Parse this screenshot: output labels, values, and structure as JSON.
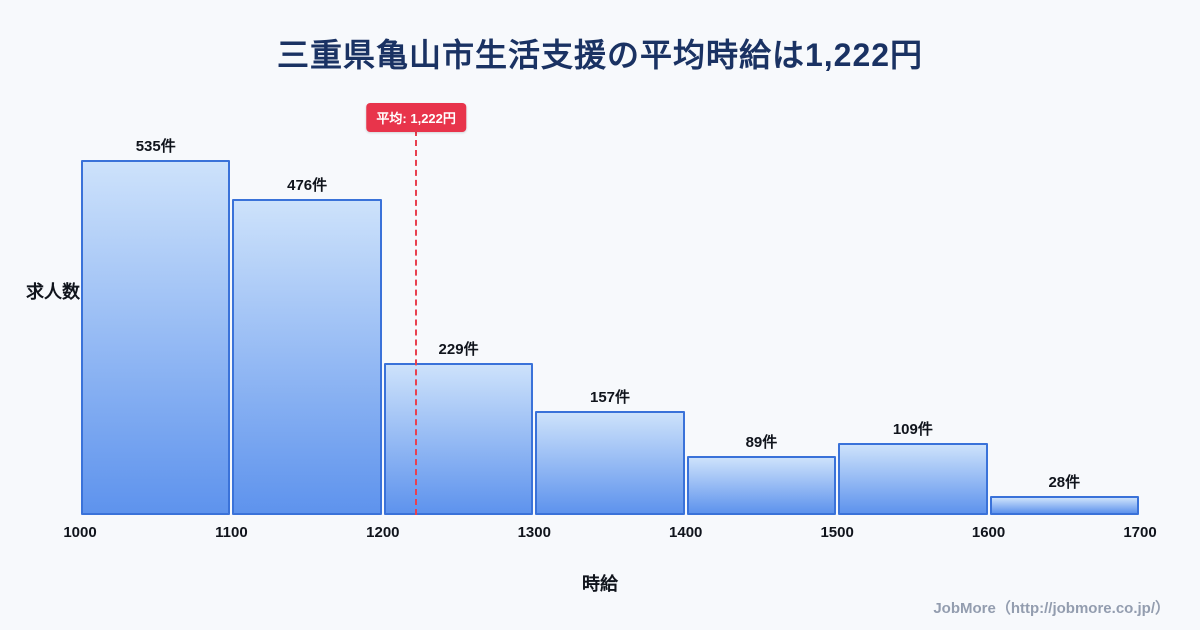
{
  "page": {
    "title": "三重県亀山市生活支援の平均時給は1,222円",
    "footer": "JobMore（http://jobmore.co.jp/）"
  },
  "chart_data": {
    "type": "bar",
    "title": "三重県亀山市生活支援の平均時給は1,222円",
    "xlabel": "時給",
    "ylabel": "求人数",
    "xlim": [
      1000,
      1700
    ],
    "bin_width": 100,
    "x_ticks": [
      "1000",
      "1100",
      "1200",
      "1300",
      "1400",
      "1500",
      "1600",
      "1700"
    ],
    "categories": [
      "1000-1100",
      "1100-1200",
      "1200-1300",
      "1300-1400",
      "1400-1500",
      "1500-1600",
      "1600-1700"
    ],
    "values": [
      535,
      476,
      229,
      157,
      89,
      109,
      28
    ],
    "value_labels": [
      "535件",
      "476件",
      "229件",
      "157件",
      "89件",
      "109件",
      "28件"
    ],
    "average": {
      "value": 1222,
      "label": "平均: 1,222円"
    },
    "grid": false,
    "legend": false,
    "colors": {
      "bar_gradient_top": "#cde2fb",
      "bar_gradient_bottom": "#5e93ed",
      "bar_border": "#3a72d9",
      "average_line": "#e8404f",
      "badge_bg": "#e8344b",
      "badge_text": "#ffffff",
      "title": "#1a3263",
      "footer": "#939daf",
      "background": "#f7f9fc"
    }
  }
}
